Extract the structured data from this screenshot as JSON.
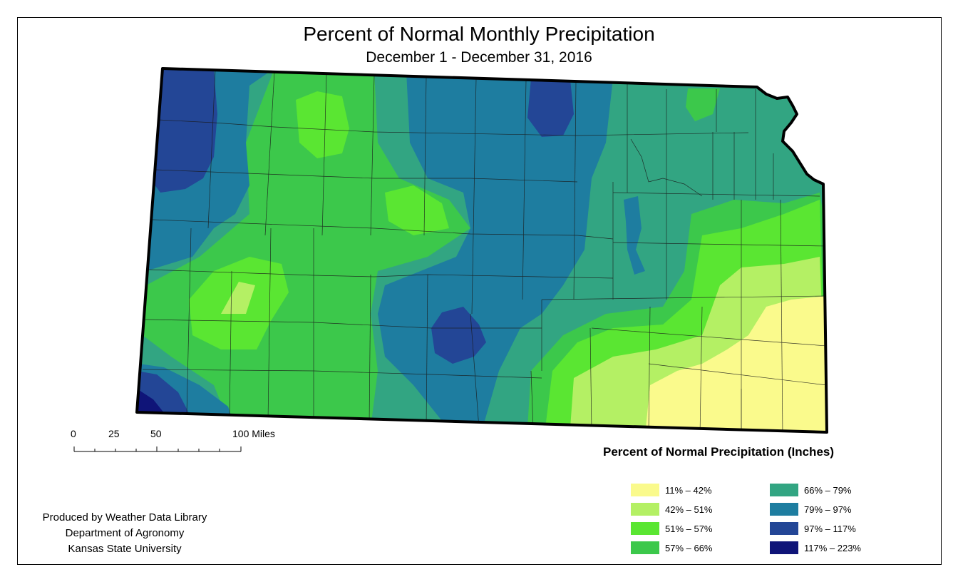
{
  "title": "Percent of Normal Monthly Precipitation",
  "subtitle": "December 1 - December 31, 2016",
  "scale_bar": {
    "labels": [
      "0",
      "25",
      "50",
      "100 Miles"
    ]
  },
  "legend": {
    "title": "Percent of Normal Precipitation (Inches)",
    "items": [
      {
        "label": "11% – 42%",
        "color": "#fafa8c"
      },
      {
        "label": "42% – 51%",
        "color": "#b4f064"
      },
      {
        "label": "51% – 57%",
        "color": "#5ae632"
      },
      {
        "label": "57% – 66%",
        "color": "#3cc84b"
      },
      {
        "label": "66% – 79%",
        "color": "#32a582"
      },
      {
        "label": "79% – 97%",
        "color": "#1e7da0"
      },
      {
        "label": "97% – 117%",
        "color": "#234696"
      },
      {
        "label": "117% – 223%",
        "color": "#0f1478"
      }
    ]
  },
  "credits": {
    "line1": "Produced by Weather Data Library",
    "line2": "Department of Agronomy",
    "line3": "Kansas State University"
  }
}
